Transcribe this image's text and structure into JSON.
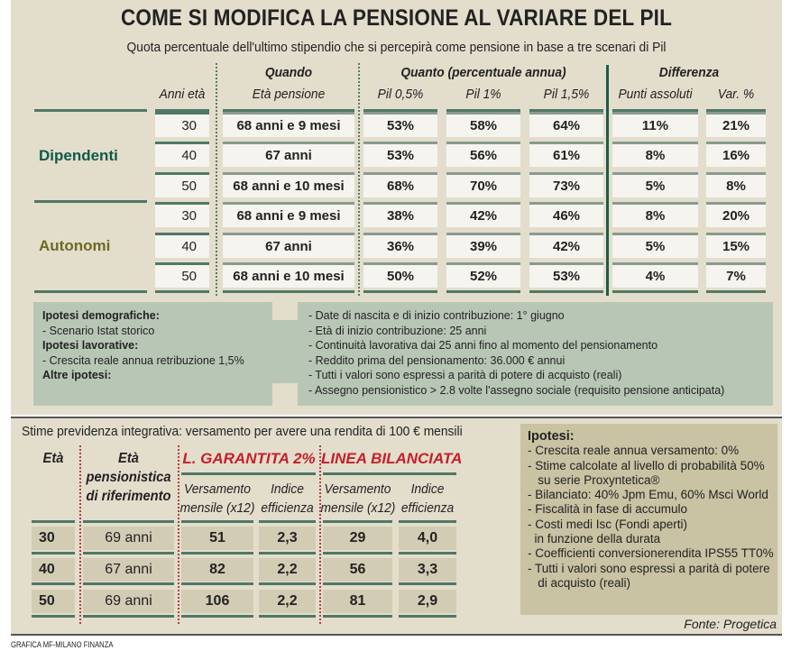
{
  "title": "COME SI MODIFICA LA PENSIONE AL VARIARE DEL PIL",
  "subtitle": "Quota percentuale dell'ultimo stipendio che si percepirà come pensione in base a tre scenari di Pil",
  "top_table": {
    "group_headers": {
      "quando": "Quando",
      "quanto": "Quanto (percentuale annua)",
      "differenza": "Differenza"
    },
    "columns": [
      "Anni età",
      "Età pensione",
      "Pil 0,5%",
      "Pil 1%",
      "Pil 1,5%",
      "Punti assoluti",
      "Var. %"
    ],
    "groups": [
      {
        "label": "Dipendenti",
        "color": "#0f5a4a",
        "rows": [
          [
            "30",
            "68 anni e 9 mesi",
            "53%",
            "58%",
            "64%",
            "11%",
            "21%"
          ],
          [
            "40",
            "67 anni",
            "53%",
            "56%",
            "61%",
            "8%",
            "16%"
          ],
          [
            "50",
            "68 anni e 10 mesi",
            "68%",
            "70%",
            "73%",
            "5%",
            "8%"
          ]
        ]
      },
      {
        "label": "Autonomi",
        "color": "#6e6a22",
        "rows": [
          [
            "30",
            "68 anni e 9 mesi",
            "38%",
            "42%",
            "46%",
            "8%",
            "20%"
          ],
          [
            "40",
            "67 anni",
            "36%",
            "39%",
            "42%",
            "5%",
            "15%"
          ],
          [
            "50",
            "68 anni e 10 mesi",
            "50%",
            "52%",
            "53%",
            "4%",
            "7%"
          ]
        ]
      }
    ]
  },
  "hypotheses_left": [
    {
      "text": "Ipotesi demografiche:",
      "bold": true
    },
    {
      "text": "- Scenario Istat storico",
      "bold": false
    },
    {
      "text": "Ipotesi lavorative:",
      "bold": true
    },
    {
      "text": "- Crescita reale annua retribuzione 1,5%",
      "bold": false
    },
    {
      "text": "Altre ipotesi:",
      "bold": true
    }
  ],
  "hypotheses_right": [
    "- Date di nascita e di inizio contribuzione: 1° giugno",
    "- Età di inizio contribuzione: 25 anni",
    "- Continuità lavorativa dai 25 anni fino al momento del pensionamento",
    "- Reddito prima del pensionamento: 36.000 € annui",
    "- Tutti i valori sono espressi a parità di potere di acquisto (reali)",
    "- Assegno pensionistico > 2.8 volte l'assegno sociale (requisito pensione anticipata)"
  ],
  "bottom_table": {
    "title": "Stime previdenza integrativa: versamento per avere una rendita di 100 € mensili",
    "h_eta": "Età",
    "h_eta_pens": [
      "Età",
      "pensionistica",
      "di riferimento"
    ],
    "h_lg": "L. GARANTITA 2%",
    "h_lb": "LINEA BILANCIATA",
    "h_vers": [
      "Versamento",
      "mensile (x12)"
    ],
    "h_ind": [
      "Indice",
      "efficienza"
    ],
    "rows": [
      [
        "30",
        "69 anni",
        "51",
        "2,3",
        "29",
        "4,0"
      ],
      [
        "40",
        "67 anni",
        "82",
        "2,2",
        "56",
        "3,3"
      ],
      [
        "50",
        "69 anni",
        "106",
        "2,2",
        "81",
        "2,9"
      ]
    ]
  },
  "ipotesi_box": {
    "title": "Ipotesi:",
    "lines": [
      "- Crescita reale annua versamento: 0%",
      "- Stime calcolate al livello di probabilità 50%",
      "   su serie Proxyntetica®",
      "- Bilanciato: 40% Jpm Emu, 60% Msci World",
      "- Fiscalità in fase di accumulo",
      "- Costi medi Isc (Fondi aperti)",
      "  in funzione della durata",
      "- Coefficienti conversionerendita IPS55 TT0%",
      "- Tutti i valori sono espressi a parità di potere",
      "   di acquisto (reali)"
    ]
  },
  "source": "Fonte: Progetica",
  "credit": "GRAFICA MF-MILANO FINANZA"
}
